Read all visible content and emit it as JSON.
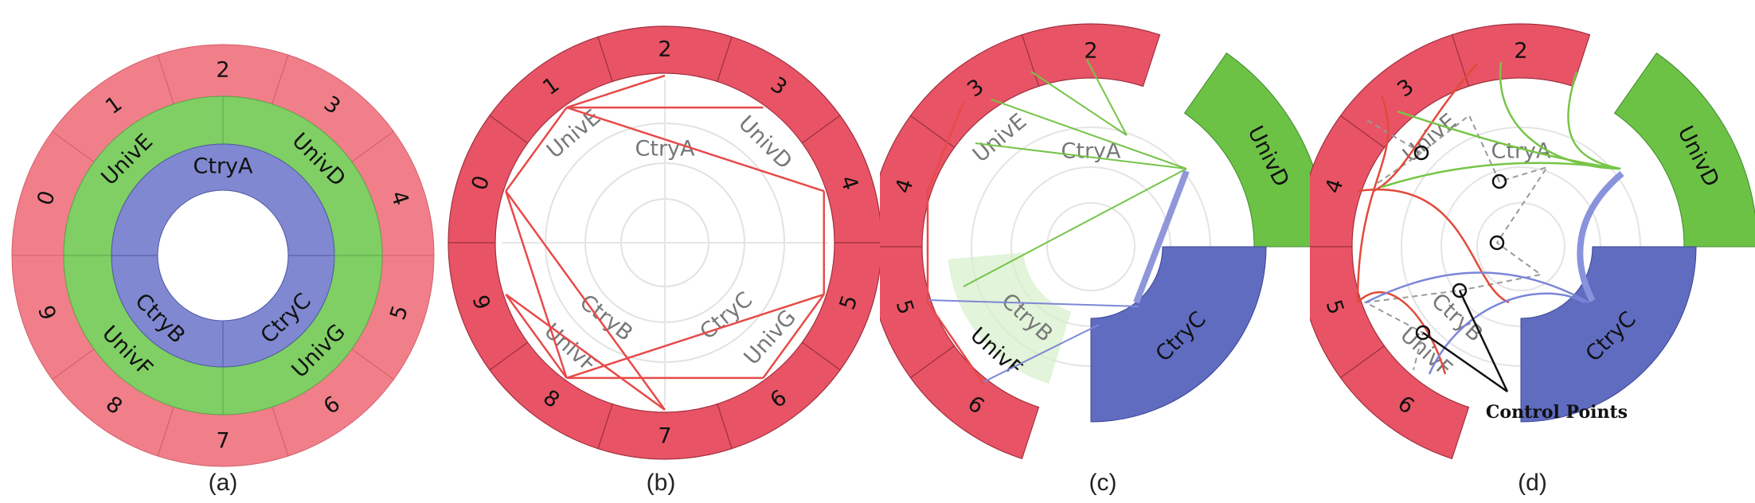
{
  "ring_labels": [
    "0",
    "1",
    "2",
    "3",
    "4",
    "5",
    "6",
    "7",
    "8",
    "9"
  ],
  "univ_labels": {
    "E": "UnivE",
    "D": "UnivD",
    "F": "UnivF",
    "G": "UnivG"
  },
  "ctry_labels": {
    "A": "CtryA",
    "B": "CtryB",
    "C": "CtryC"
  },
  "annotation": "Control Points",
  "captions": [
    "(a)",
    "(b)",
    "(c)",
    "(d)"
  ],
  "colors": {
    "red": "#e85465",
    "red_light": "#f07f89",
    "green": "#7fcf64",
    "green_dark": "#6cc245",
    "blue": "#6a75c6",
    "blue_light": "#7f88d0",
    "link_red": "#e84a4a",
    "link_green": "#76c44a",
    "link_blue": "#7d87d6"
  }
}
